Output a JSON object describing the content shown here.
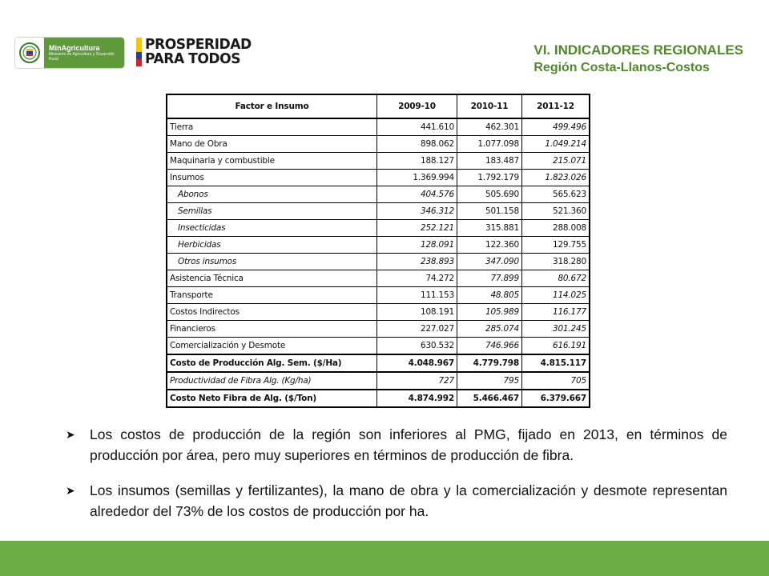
{
  "header": {
    "logo_left": {
      "name": "MinAgricultura",
      "subtitle": "Ministerio de Agricultura y Desarrollo Rural",
      "icon": "colombia-seal-icon"
    },
    "logo_right": {
      "line1": "PROSPERIDAD",
      "line2": "PARA TODOS",
      "colors": [
        "#f5c400",
        "#1f3f99",
        "#d6202b"
      ]
    },
    "title": "VI. INDICADORES REGIONALES",
    "subtitle": "Región Costa-Llanos-Costos"
  },
  "table": {
    "headers": [
      "Factor e Insumo",
      "2009-10",
      "2010-11",
      "2011-12"
    ],
    "rows": [
      {
        "label": "Tierra",
        "v": [
          "441.610",
          "462.301",
          "499.496"
        ]
      },
      {
        "label": "Mano de Obra",
        "v": [
          "898.062",
          "1.077.098",
          "1.049.214"
        ]
      },
      {
        "label": "Maquinaria y combustible",
        "v": [
          "188.127",
          "183.487",
          "215.071"
        ]
      },
      {
        "label": "Insumos",
        "v": [
          "1.369.994",
          "1.792.179",
          "1.823.026"
        ]
      },
      {
        "label": "Abonos",
        "v": [
          "404.576",
          "505.690",
          "565.623"
        ]
      },
      {
        "label": "Semillas",
        "v": [
          "346.312",
          "501.158",
          "521.360"
        ]
      },
      {
        "label": "Insecticidas",
        "v": [
          "252.121",
          "315.881",
          "288.008"
        ]
      },
      {
        "label": "Herbicidas",
        "v": [
          "128.091",
          "122.360",
          "129.755"
        ]
      },
      {
        "label": "Otros insumos",
        "v": [
          "238.893",
          "347.090",
          "318.280"
        ]
      },
      {
        "label": "Asistencia Técnica",
        "v": [
          "74.272",
          "77.899",
          "80.672"
        ]
      },
      {
        "label": "Transporte",
        "v": [
          "111.153",
          "48.805",
          "114.025"
        ]
      },
      {
        "label": "Costos Indirectos",
        "v": [
          "108.191",
          "105.989",
          "116.177"
        ]
      },
      {
        "label": "Financieros",
        "v": [
          "227.027",
          "285.074",
          "301.245"
        ]
      },
      {
        "label": "Comercialización y Desmote",
        "v": [
          "630.532",
          "746.966",
          "616.191"
        ]
      },
      {
        "label": "Costo de Producción Alg. Sem. ($/Ha)",
        "v": [
          "4.048.967",
          "4.779.798",
          "4.815.117"
        ]
      },
      {
        "label": "Productividad de Fibra Alg. (Kg/ha)",
        "v": [
          "727",
          "795",
          "705"
        ]
      },
      {
        "label": "Costo Neto Fibra de Alg. ($/Ton)",
        "v": [
          "4.874.992",
          "5.466.467",
          "6.379.667"
        ]
      }
    ]
  },
  "bullets": [
    "Los costos de producción de la región son inferiores al PMG, fijado en 2013, en términos de producción por área, pero muy superiores en términos de producción de fibra.",
    "Los insumos (semillas y fertilizantes), la mano de obra y la comercialización y desmote representan alrededor del 73% de los costos de producción por ha."
  ],
  "colors": {
    "accent_green": "#4f8a2b",
    "footer_green": "#6cad45"
  }
}
